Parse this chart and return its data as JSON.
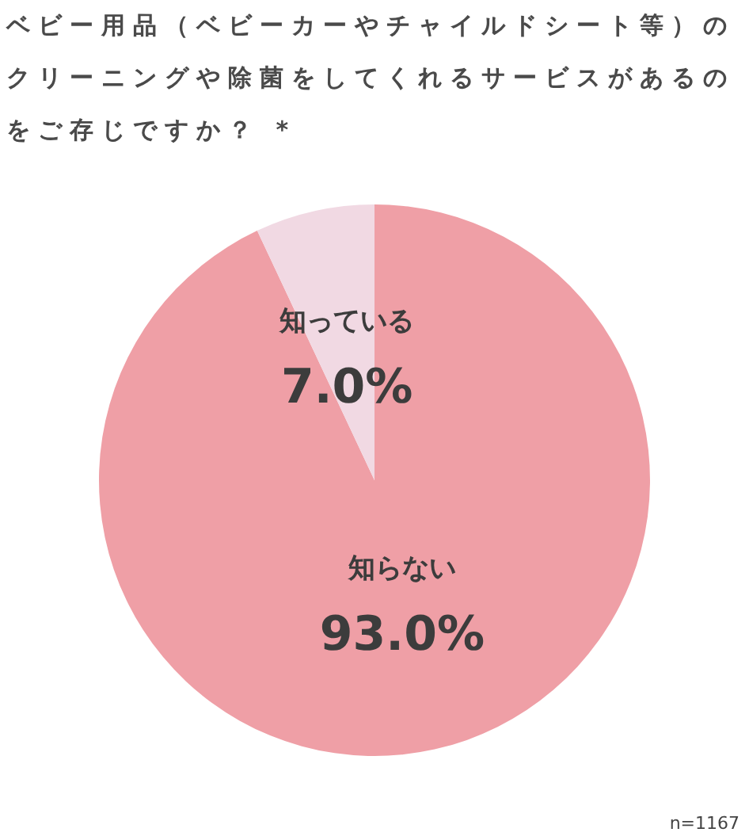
{
  "chart_data": {
    "type": "pie",
    "title": "ベビー用品（ベビーカーやチャイルドシート等）のクリーニングや除菌をしてくれるサービスがあるのをご存じですか？ *",
    "categories": [
      "知らない",
      "知っている"
    ],
    "values": [
      93.0,
      7.0
    ],
    "colors": [
      "#ef9fa6",
      "#f1d9e3"
    ],
    "value_labels": [
      "93.0%",
      "7.0%"
    ],
    "annotations": [
      "n=1167"
    ]
  }
}
